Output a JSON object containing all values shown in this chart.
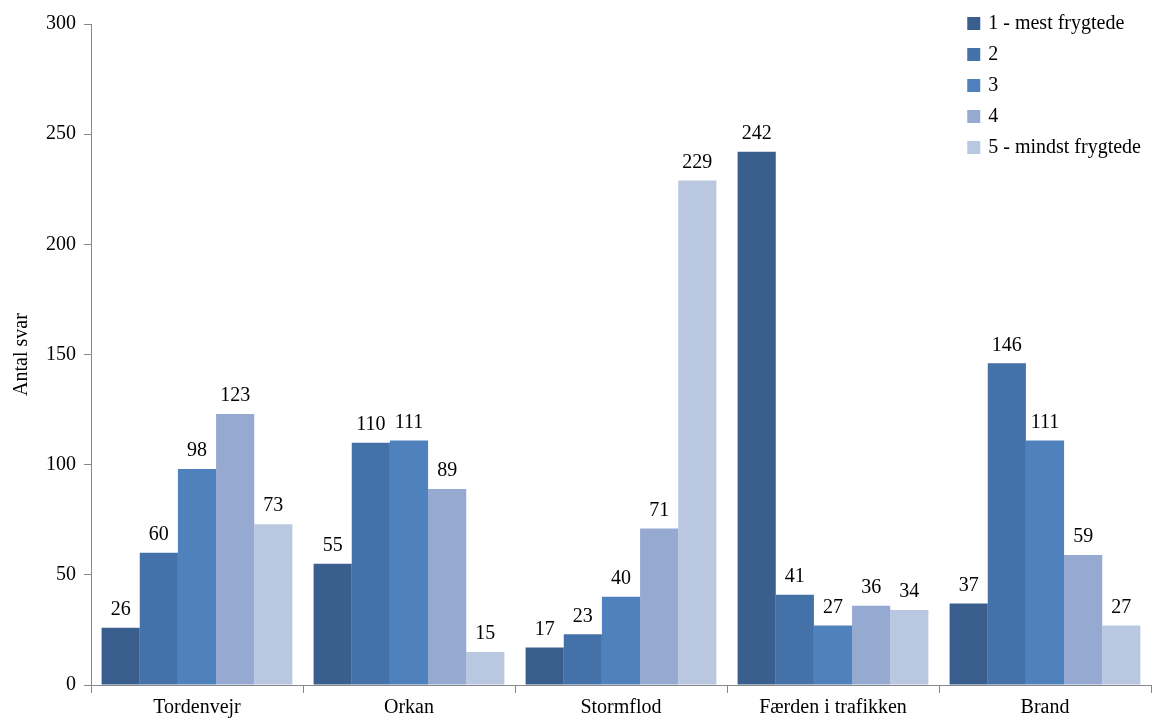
{
  "chart_data": {
    "type": "bar",
    "ylabel": "Antal svar",
    "categories": [
      "Tordenvejr",
      "Orkan",
      "Stormflod",
      "Færden i trafikken",
      "Brand"
    ],
    "series": [
      {
        "name": "1 - mest frygtede",
        "color": "#3a5f8f",
        "values": [
          26,
          55,
          17,
          242,
          37
        ]
      },
      {
        "name": "2",
        "color": "#4571a9",
        "values": [
          60,
          110,
          23,
          41,
          146
        ]
      },
      {
        "name": "3",
        "color": "#4f81bd",
        "values": [
          98,
          111,
          40,
          27,
          111
        ]
      },
      {
        "name": "4",
        "color": "#95a9d1",
        "values": [
          123,
          89,
          71,
          36,
          59
        ]
      },
      {
        "name": "5 - mindst frygtede",
        "color": "#bac7e1",
        "values": [
          73,
          15,
          229,
          34,
          27
        ]
      }
    ],
    "ylim": [
      0,
      300
    ],
    "yticks": [
      0,
      50,
      100,
      150,
      200,
      250,
      300
    ],
    "grid": false,
    "legend": "top right",
    "data_labels": true
  }
}
